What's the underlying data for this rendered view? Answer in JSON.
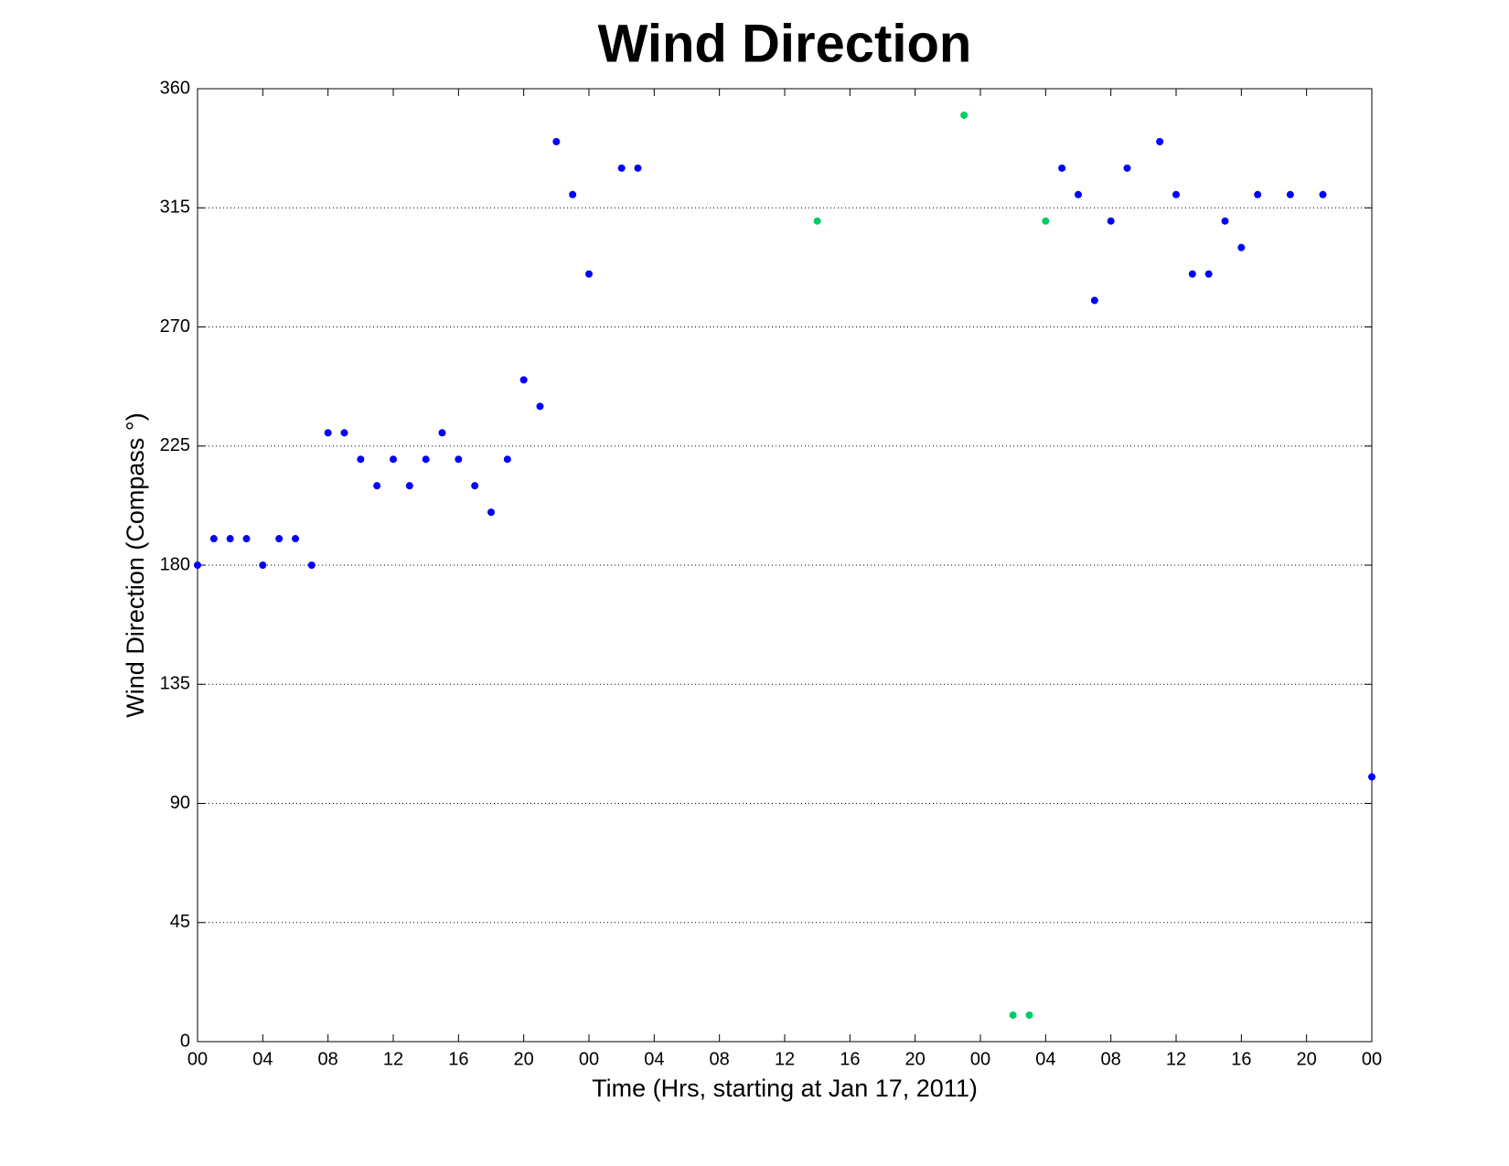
{
  "chart_data": {
    "type": "scatter",
    "title": "Wind Direction",
    "xlabel": "Time (Hrs, starting at Jan 17, 2011)",
    "ylabel": "Wind Direction (Compass °)",
    "xlim": [
      0,
      72
    ],
    "ylim": [
      0,
      360
    ],
    "xticks": [
      {
        "value": 0,
        "label": "00"
      },
      {
        "value": 4,
        "label": "04"
      },
      {
        "value": 8,
        "label": "08"
      },
      {
        "value": 12,
        "label": "12"
      },
      {
        "value": 16,
        "label": "16"
      },
      {
        "value": 20,
        "label": "20"
      },
      {
        "value": 24,
        "label": "00"
      },
      {
        "value": 28,
        "label": "04"
      },
      {
        "value": 32,
        "label": "08"
      },
      {
        "value": 36,
        "label": "12"
      },
      {
        "value": 40,
        "label": "16"
      },
      {
        "value": 44,
        "label": "20"
      },
      {
        "value": 48,
        "label": "00"
      },
      {
        "value": 52,
        "label": "04"
      },
      {
        "value": 56,
        "label": "08"
      },
      {
        "value": 60,
        "label": "12"
      },
      {
        "value": 64,
        "label": "16"
      },
      {
        "value": 68,
        "label": "20"
      },
      {
        "value": 72,
        "label": "00"
      }
    ],
    "yticks": [
      0,
      45,
      90,
      135,
      180,
      225,
      270,
      315,
      360
    ],
    "grid": true,
    "series": [
      {
        "color": "#0000ff",
        "x": [
          0,
          1,
          2,
          3,
          4,
          5,
          6,
          7,
          8,
          9,
          10,
          11,
          12,
          13,
          14,
          15,
          16,
          17,
          18,
          19,
          20,
          21,
          22,
          23,
          24,
          26,
          27,
          53,
          54,
          55,
          56,
          57,
          59,
          60,
          61,
          62,
          63,
          64,
          65,
          67,
          69,
          72
        ],
        "values": [
          180,
          190,
          190,
          190,
          180,
          190,
          190,
          180,
          230,
          230,
          220,
          210,
          220,
          210,
          220,
          230,
          220,
          210,
          200,
          220,
          250,
          240,
          340,
          320,
          290,
          330,
          330,
          330,
          320,
          280,
          310,
          330,
          340,
          320,
          290,
          290,
          310,
          300,
          320,
          320,
          320,
          100
        ]
      },
      {
        "color": "#00cc66",
        "x": [
          38,
          47,
          50,
          51,
          52
        ],
        "values": [
          310,
          350,
          10,
          10,
          310
        ]
      }
    ]
  }
}
